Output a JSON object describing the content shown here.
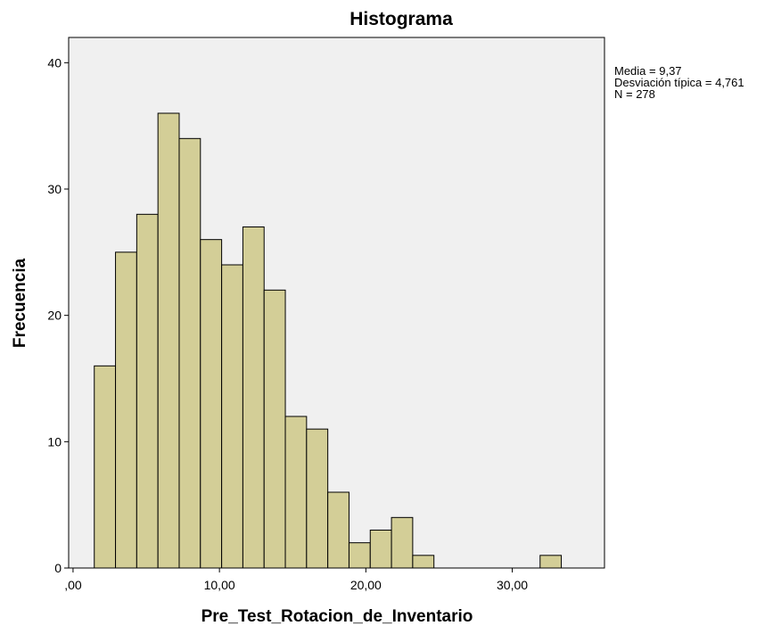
{
  "chart_data": {
    "type": "bar",
    "title": "Histograma",
    "xlabel": "Pre_Test_Rotacion_de_Inventario",
    "ylabel": "Frecuencia",
    "xlim": [
      -0.3,
      36.3
    ],
    "ylim": [
      0,
      42
    ],
    "bin_width": 1.45,
    "bins": [
      {
        "start": 1.45,
        "end": 2.9,
        "value": 16
      },
      {
        "start": 2.9,
        "end": 4.35,
        "value": 25
      },
      {
        "start": 4.35,
        "end": 5.8,
        "value": 28
      },
      {
        "start": 5.8,
        "end": 7.25,
        "value": 36
      },
      {
        "start": 7.25,
        "end": 8.7,
        "value": 34
      },
      {
        "start": 8.7,
        "end": 10.15,
        "value": 26
      },
      {
        "start": 10.15,
        "end": 11.6,
        "value": 24
      },
      {
        "start": 11.6,
        "end": 13.05,
        "value": 27
      },
      {
        "start": 13.05,
        "end": 14.5,
        "value": 22
      },
      {
        "start": 14.5,
        "end": 15.95,
        "value": 12
      },
      {
        "start": 15.95,
        "end": 17.4,
        "value": 11
      },
      {
        "start": 17.4,
        "end": 18.85,
        "value": 6
      },
      {
        "start": 18.85,
        "end": 20.3,
        "value": 2
      },
      {
        "start": 20.3,
        "end": 21.75,
        "value": 3
      },
      {
        "start": 21.75,
        "end": 23.2,
        "value": 4
      },
      {
        "start": 23.2,
        "end": 24.65,
        "value": 1
      },
      {
        "start": 31.9,
        "end": 33.35,
        "value": 1
      }
    ],
    "x_ticks": [
      {
        "value": 0,
        "label": ",00"
      },
      {
        "value": 10,
        "label": "10,00"
      },
      {
        "value": 20,
        "label": "20,00"
      },
      {
        "value": 30,
        "label": "30,00"
      }
    ],
    "y_ticks": [
      {
        "value": 0,
        "label": "0"
      },
      {
        "value": 10,
        "label": "10"
      },
      {
        "value": 20,
        "label": "20"
      },
      {
        "value": 30,
        "label": "30"
      },
      {
        "value": 40,
        "label": "40"
      }
    ],
    "stats": [
      "Media = 9,37",
      "Desviación típica = 4,761",
      "N = 278"
    ],
    "grid": false,
    "legend": "none"
  },
  "colors": {
    "plot_background": "#f0f0f0",
    "bar_fill": "#d3ce97",
    "bar_stroke": "#000000",
    "axis": "#000000"
  }
}
